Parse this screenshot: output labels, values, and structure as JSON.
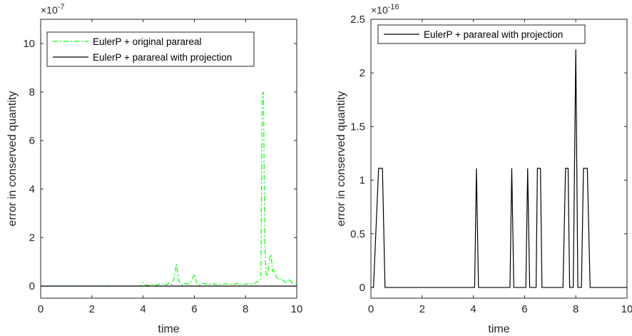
{
  "chart_data": [
    {
      "type": "line",
      "xlabel": "time",
      "ylabel": "error in conserved quantity",
      "y_exponent_label": "×10",
      "y_exponent": "-7",
      "xlim": [
        0,
        10
      ],
      "ylim": [
        -0.5,
        11
      ],
      "xticks": [
        0,
        2,
        4,
        6,
        8,
        10
      ],
      "yticks": [
        0,
        2,
        4,
        6,
        8,
        10
      ],
      "grid": false,
      "legend_placement": "top-left",
      "series": [
        {
          "name": "EulerP + original parareal",
          "color": "#00ff00",
          "style": "dash-dot",
          "x": [
            0,
            3.9,
            4.0,
            4.1,
            4.2,
            4.35,
            4.5,
            4.7,
            4.9,
            5.0,
            5.1,
            5.2,
            5.3,
            5.4,
            5.5,
            5.6,
            5.75,
            5.9,
            6.0,
            6.1,
            6.2,
            6.35,
            6.5,
            6.7,
            6.9,
            7.1,
            7.3,
            7.5,
            7.7,
            7.9,
            8.1,
            8.3,
            8.5,
            8.6,
            8.65,
            8.7,
            8.75,
            8.8,
            8.85,
            8.9,
            8.95,
            9.0,
            9.05,
            9.1,
            9.2,
            9.3,
            9.4,
            9.5,
            9.6,
            9.7,
            9.8,
            9.9,
            10.0
          ],
          "y": [
            0,
            0,
            0.15,
            0.05,
            0.02,
            0.08,
            0.03,
            0.1,
            0.04,
            0.12,
            0.05,
            0.3,
            0.9,
            0.2,
            0.05,
            0.12,
            0.08,
            0.2,
            0.5,
            0.1,
            0.05,
            0.12,
            0.06,
            0.1,
            0.05,
            0.08,
            0.1,
            0.06,
            0.12,
            0.05,
            0.1,
            0.08,
            0.2,
            0.3,
            7.9,
            8.0,
            2.0,
            0.5,
            0.4,
            0.8,
            1.2,
            1.3,
            0.6,
            0.7,
            0.4,
            0.25,
            0.3,
            0.2,
            0.15,
            0.3,
            0.15,
            0.08,
            0.1
          ]
        },
        {
          "name": "EulerP + parareal with projection",
          "color": "#000000",
          "style": "solid",
          "x": [
            0,
            10
          ],
          "y": [
            0,
            0
          ]
        }
      ]
    },
    {
      "type": "line",
      "xlabel": "time",
      "ylabel": "error in conserved quantity",
      "y_exponent_label": "×10",
      "y_exponent": "-16",
      "xlim": [
        0,
        10
      ],
      "ylim": [
        -0.1,
        2.5
      ],
      "xticks": [
        0,
        2,
        4,
        6,
        8,
        10
      ],
      "x_tick_labels": [
        "0",
        "2",
        "4",
        "6",
        "8",
        "10"
      ],
      "yticks": [
        0,
        0.5,
        1,
        1.5,
        2,
        2.5
      ],
      "y_tick_labels": [
        "0",
        "0.5",
        "1",
        "1.5",
        "2",
        "2.5"
      ],
      "grid": false,
      "legend_placement": "top",
      "series": [
        {
          "name": "EulerP + parareal with projection",
          "color": "#000000",
          "style": "solid",
          "x": [
            0,
            0.1,
            0.3,
            0.45,
            0.55,
            4.05,
            4.12,
            4.2,
            5.43,
            5.5,
            5.58,
            6.05,
            6.12,
            6.2,
            6.45,
            6.5,
            6.62,
            6.68,
            7.5,
            7.6,
            7.7,
            7.76,
            7.9,
            8.0,
            8.08,
            8.22,
            8.3,
            8.45,
            8.56,
            10.0
          ],
          "y": [
            0,
            0,
            1.11,
            1.11,
            0,
            0,
            1.11,
            0,
            0,
            1.11,
            0,
            0,
            1.11,
            0,
            0,
            1.11,
            1.11,
            0,
            0,
            1.11,
            1.11,
            0,
            0,
            2.22,
            0,
            0,
            1.11,
            1.11,
            0,
            0
          ]
        }
      ]
    }
  ]
}
